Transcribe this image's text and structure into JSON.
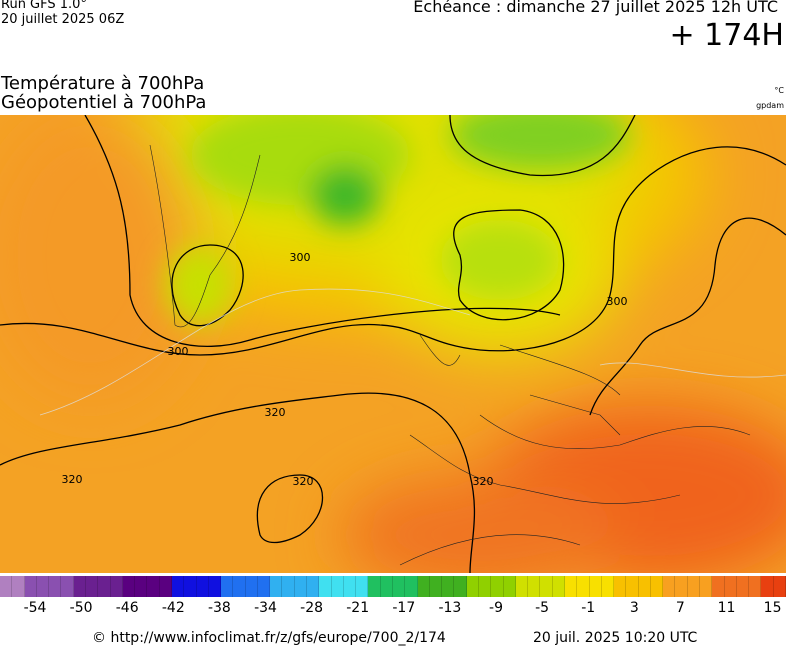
{
  "header": {
    "run": "Run GFS 1.0°",
    "run_date": "20 juillet 2025 06Z",
    "forecast": "Echéance : dimanche 27 juillet 2025 12h UTC",
    "lead": "+ 174H"
  },
  "titles": {
    "temperature": "Température à 700hPa",
    "geopotential": "Géopotentiel à 700hPa",
    "temp_unit": "°C",
    "geo_unit": "gpdam"
  },
  "contour_labels": [
    300,
    300,
    300,
    320,
    320,
    320,
    320
  ],
  "colorbar_labels": [
    -54,
    -50,
    -46,
    -42,
    -38,
    -34,
    -28,
    -21,
    -17,
    -13,
    -9,
    -5,
    -1,
    3,
    7,
    11,
    15
  ],
  "footer": {
    "url": "© http://www.infoclimat.fr/z/gfs/europe/700_2/174",
    "timestamp": "20 juil. 2025 10:20 UTC"
  }
}
